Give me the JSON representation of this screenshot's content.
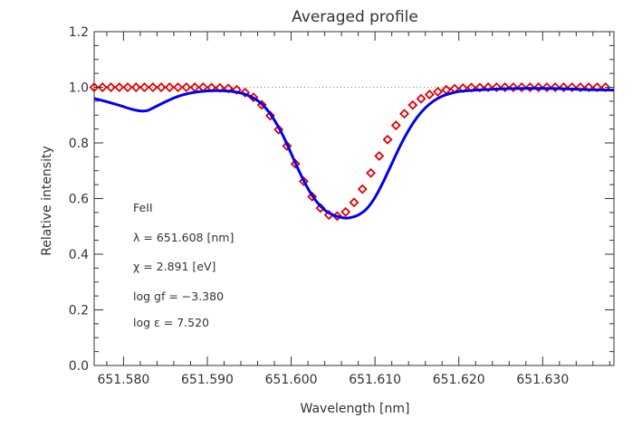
{
  "chart_data": {
    "type": "line",
    "title": "Averaged profile",
    "xlabel": "Wavelength [nm]",
    "ylabel": "Relative intensity",
    "xlim": [
      651.5765,
      651.6385
    ],
    "ylim": [
      0.0,
      1.2
    ],
    "x_ticks": [
      651.58,
      651.59,
      651.6,
      651.61,
      651.62,
      651.63
    ],
    "x_tick_labels": [
      "651.580",
      "651.590",
      "651.600",
      "651.610",
      "651.620",
      "651.630"
    ],
    "y_ticks": [
      0.0,
      0.2,
      0.4,
      0.6,
      0.8,
      1.0,
      1.2
    ],
    "y_tick_labels": [
      "0.0",
      "0.2",
      "0.4",
      "0.6",
      "0.8",
      "1.0",
      "1.2"
    ],
    "reference_line": {
      "y": 1.0,
      "style": "dotted"
    },
    "annotations": [
      "FeII",
      "λ = 651.608 [nm]",
      "χ =  2.891 [eV]",
      "log gf = −3.380",
      "log ε =  7.520"
    ],
    "series": [
      {
        "marker": "diamond",
        "color": "#e00000",
        "x": [
          651.5765,
          651.5775,
          651.5785,
          651.5795,
          651.5805,
          651.5815,
          651.5825,
          651.5835,
          651.5845,
          651.5855,
          651.5865,
          651.5875,
          651.5885,
          651.5895,
          651.5905,
          651.5915,
          651.5925,
          651.5935,
          651.5945,
          651.5955,
          651.5965,
          651.5975,
          651.5985,
          651.5995,
          651.6005,
          651.6015,
          651.6025,
          651.6035,
          651.6045,
          651.6055,
          651.6065,
          651.6075,
          651.6085,
          651.6095,
          651.6105,
          651.6115,
          651.6125,
          651.6135,
          651.6145,
          651.6155,
          651.6165,
          651.6175,
          651.6185,
          651.6195,
          651.6205,
          651.6215,
          651.6225,
          651.6235,
          651.6245,
          651.6255,
          651.6265,
          651.6275,
          651.6285,
          651.6295,
          651.6305,
          651.6315,
          651.6325,
          651.6335,
          651.6345,
          651.6355,
          651.6365,
          651.6375
        ],
        "y": [
          1.0,
          1.0,
          1.0,
          1.0,
          1.0,
          1.0,
          1.0,
          1.0,
          1.0,
          1.0,
          1.0,
          1.0,
          1.0,
          1.0,
          0.999,
          0.998,
          0.996,
          0.991,
          0.981,
          0.964,
          0.937,
          0.898,
          0.848,
          0.789,
          0.725,
          0.662,
          0.607,
          0.566,
          0.541,
          0.537,
          0.552,
          0.586,
          0.634,
          0.692,
          0.753,
          0.812,
          0.863,
          0.905,
          0.936,
          0.959,
          0.974,
          0.984,
          0.991,
          0.995,
          0.997,
          0.999,
          0.999,
          1.0,
          1.0,
          1.0,
          1.0,
          1.0,
          1.0,
          1.0,
          1.0,
          1.0,
          1.0,
          1.0,
          1.0,
          1.0,
          1.0,
          1.0
        ]
      },
      {
        "line": "solid",
        "color": "#0000ee",
        "x": [
          651.5765,
          651.578,
          651.5795,
          651.581,
          651.582,
          651.5825,
          651.583,
          651.584,
          651.5855,
          651.587,
          651.5885,
          651.59,
          651.5915,
          651.593,
          651.5945,
          651.596,
          651.597,
          651.598,
          651.599,
          651.6,
          651.601,
          651.602,
          651.603,
          651.604,
          651.605,
          651.606,
          651.6065,
          651.607,
          651.608,
          651.609,
          651.61,
          651.611,
          651.612,
          651.613,
          651.614,
          651.615,
          651.616,
          651.617,
          651.618,
          651.619,
          651.62,
          651.622,
          651.624,
          651.626,
          651.628,
          651.63,
          651.632,
          651.634,
          651.636,
          651.6385
        ],
        "y": [
          0.96,
          0.948,
          0.935,
          0.921,
          0.915,
          0.915,
          0.918,
          0.933,
          0.955,
          0.972,
          0.982,
          0.987,
          0.988,
          0.985,
          0.975,
          0.952,
          0.924,
          0.882,
          0.828,
          0.762,
          0.695,
          0.636,
          0.59,
          0.559,
          0.541,
          0.532,
          0.53,
          0.531,
          0.541,
          0.563,
          0.604,
          0.661,
          0.725,
          0.789,
          0.845,
          0.891,
          0.926,
          0.951,
          0.968,
          0.978,
          0.985,
          0.99,
          0.993,
          0.995,
          0.996,
          0.996,
          0.995,
          0.993,
          0.991,
          0.99
        ]
      }
    ]
  }
}
